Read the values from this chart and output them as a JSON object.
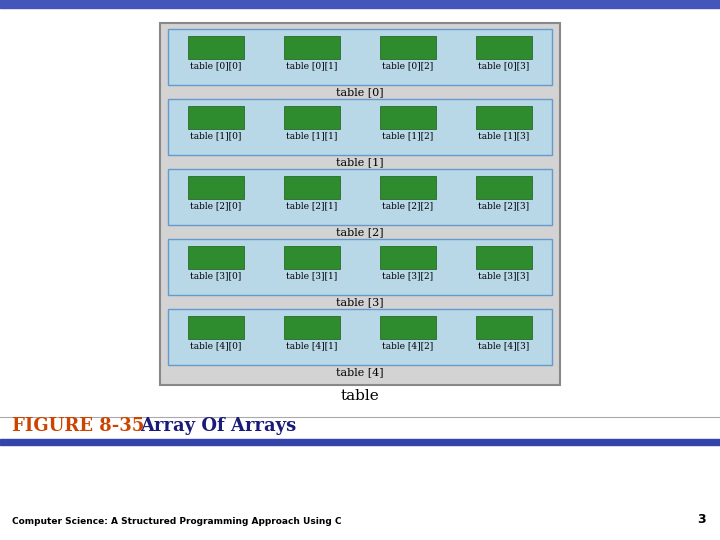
{
  "subtitle": "Computer Science: A Structured Programming Approach Using C",
  "page_num": "3",
  "outer_bg": "#d3d3d3",
  "inner_bg": "#b8d8e8",
  "green_color": "#2e8b2e",
  "green_edge": "#1a5c1a",
  "outer_label": "table",
  "num_rows": 5,
  "num_cols": 4,
  "top_bar_color": "#4455bb",
  "bottom_bar_color": "#3344aa",
  "figure_label_color": "#cc4400",
  "figure_title_color": "#1a1a7a",
  "cell_labels": [
    [
      "table [0][0]",
      "table [0][1]",
      "table [0][2]",
      "table [0][3]"
    ],
    [
      "table [1][0]",
      "table [1][1]",
      "table [1][2]",
      "table [1][3]"
    ],
    [
      "table [2][0]",
      "table [2][1]",
      "table [2][2]",
      "table [2][3]"
    ],
    [
      "table [3][0]",
      "table [3][1]",
      "table [3][2]",
      "table [3][3]"
    ],
    [
      "table [4][0]",
      "table [4][1]",
      "table [4][2]",
      "table [4][3]"
    ]
  ],
  "row_labels": [
    "table [0]",
    "table [1]",
    "table [2]",
    "table [3]",
    "table [4]"
  ]
}
